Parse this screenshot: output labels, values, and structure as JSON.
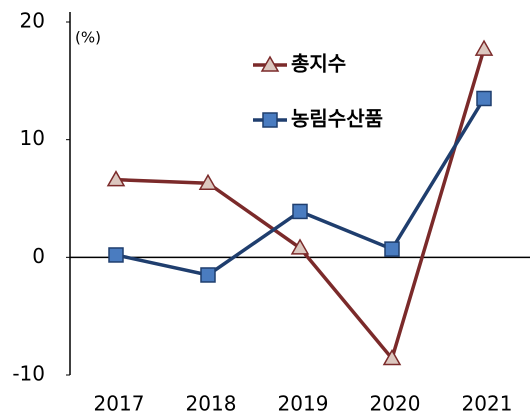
{
  "chart_data": {
    "type": "line",
    "unit_label": "(%)",
    "categories": [
      "2017",
      "2018",
      "2019",
      "2020",
      "2021"
    ],
    "series": [
      {
        "name": "총지수",
        "color": "#7b2a2a",
        "marker": "triangle",
        "values": [
          6.6,
          6.3,
          0.8,
          -8.6,
          17.7
        ]
      },
      {
        "name": "농림수산품",
        "color": "#1f3e6e",
        "marker": "square",
        "values": [
          0.2,
          -1.5,
          3.9,
          0.7,
          13.5
        ]
      }
    ],
    "ylim": [
      -10,
      20
    ],
    "yticks": [
      -10,
      0,
      10,
      20
    ]
  }
}
